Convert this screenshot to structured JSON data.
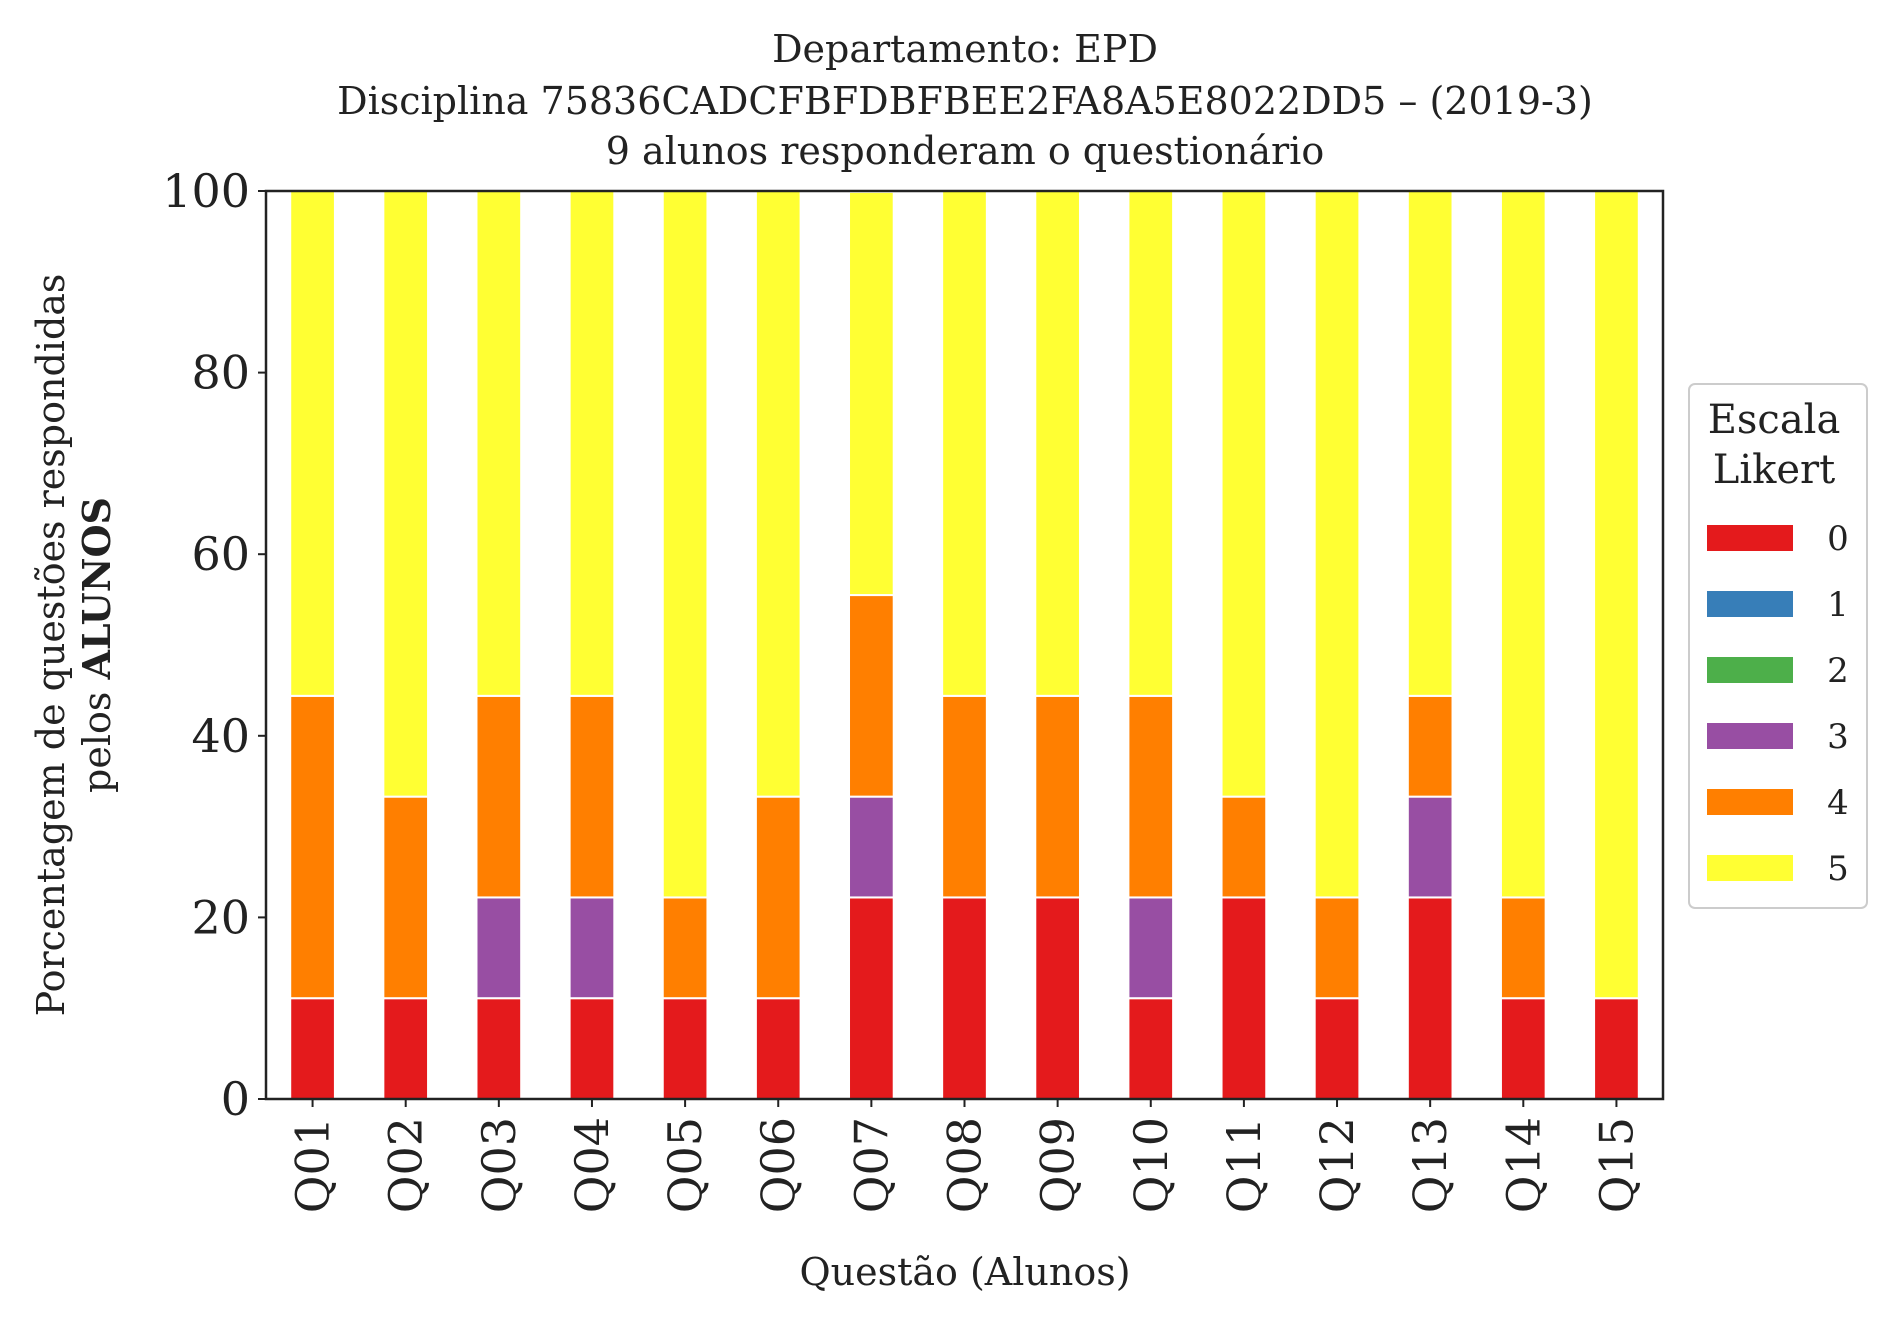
{
  "chart_data": {
    "type": "bar",
    "stacked": true,
    "title_lines": [
      "Departamento: EPD",
      "Disciplina 75836CADCFBFDBFBEE2FA8A5E8022DD5 – (2019-3)",
      "9 alunos responderam o questionário"
    ],
    "xlabel": "Questão (Alunos)",
    "ylabel_line1": "Porcentagem de questões respondidas",
    "ylabel_line2_prefix": "pelos ",
    "ylabel_line2_bold": "ALUNOS",
    "ylim": [
      0,
      100
    ],
    "yticks": [
      "0",
      "20",
      "40",
      "60",
      "80",
      "100"
    ],
    "grid": false,
    "categories": [
      "Q01",
      "Q02",
      "Q03",
      "Q04",
      "Q05",
      "Q06",
      "Q07",
      "Q08",
      "Q09",
      "Q10",
      "Q11",
      "Q12",
      "Q13",
      "Q14",
      "Q15"
    ],
    "series": [
      {
        "name": "0",
        "color": "#e41a1c",
        "values": [
          11.1,
          11.1,
          11.1,
          11.1,
          11.1,
          11.1,
          22.2,
          22.2,
          22.2,
          11.1,
          22.2,
          11.1,
          22.2,
          11.1,
          11.1
        ]
      },
      {
        "name": "1",
        "color": "#377eb8",
        "values": [
          0,
          0,
          0,
          0,
          0,
          0,
          0,
          0,
          0,
          0,
          0,
          0,
          0,
          0,
          0
        ]
      },
      {
        "name": "2",
        "color": "#4daf4a",
        "values": [
          0,
          0,
          0,
          0,
          0,
          0,
          0,
          0,
          0,
          0,
          0,
          0,
          0,
          0,
          0
        ]
      },
      {
        "name": "3",
        "color": "#984ea3",
        "values": [
          0,
          0,
          11.1,
          11.1,
          0,
          0,
          11.1,
          0,
          0,
          11.1,
          0,
          0,
          11.1,
          0,
          0
        ]
      },
      {
        "name": "4",
        "color": "#ff7f00",
        "values": [
          33.3,
          22.2,
          22.2,
          22.2,
          11.1,
          22.2,
          22.2,
          22.2,
          22.2,
          22.2,
          11.1,
          11.1,
          11.1,
          11.1,
          0
        ]
      },
      {
        "name": "5",
        "color": "#ffff33",
        "values": [
          55.6,
          66.7,
          55.6,
          55.6,
          77.8,
          66.7,
          44.4,
          55.6,
          55.6,
          55.6,
          66.7,
          77.8,
          55.6,
          77.8,
          88.9
        ]
      }
    ],
    "legend": {
      "title_lines": [
        "Escala",
        "Likert"
      ],
      "placement": "right-center"
    }
  }
}
